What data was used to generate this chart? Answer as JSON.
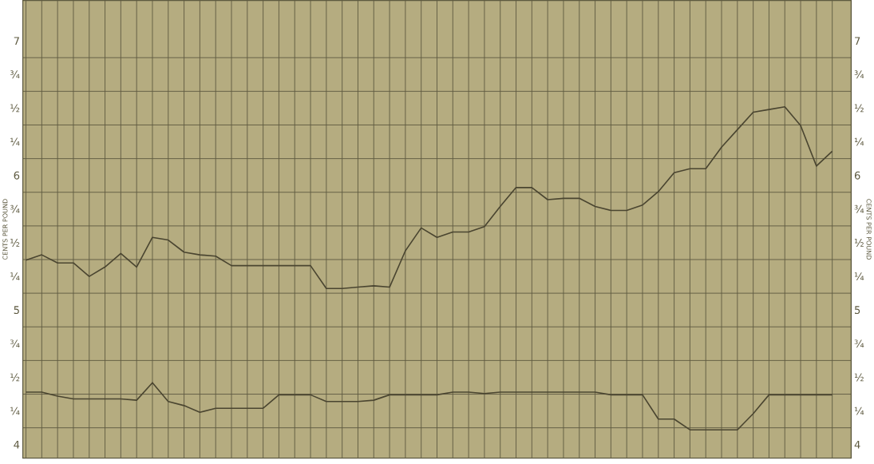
{
  "chart_data": {
    "type": "line",
    "ylabel": "CENTS PER POUND",
    "y2label": "CENTS PER POUND",
    "categories": [
      null,
      null,
      null,
      null,
      null,
      null,
      null,
      null,
      null,
      null,
      null,
      null,
      null,
      null,
      null,
      null,
      null,
      null,
      null,
      null,
      null,
      null,
      null,
      null,
      null,
      null,
      null,
      null,
      null,
      null,
      null,
      null,
      null,
      null,
      null,
      null,
      null,
      null,
      null,
      null,
      null,
      null,
      null,
      null,
      null,
      null,
      null,
      null,
      null,
      null,
      null,
      null
    ],
    "series": [
      {
        "color": "#4a4530",
        "values": [
          5.37,
          5.41,
          5.35,
          5.35,
          5.25,
          5.32,
          5.42,
          5.32,
          5.54,
          5.52,
          5.43,
          5.41,
          5.4,
          5.33,
          5.33,
          5.33,
          5.33,
          5.33,
          5.33,
          5.16,
          5.16,
          5.17,
          5.18,
          5.17,
          5.44,
          5.61,
          5.54,
          5.58,
          5.58,
          5.62,
          5.77,
          5.91,
          5.91,
          5.82,
          5.83,
          5.83,
          5.77,
          5.74,
          5.74,
          5.78,
          5.88,
          6.02,
          6.05,
          6.05,
          6.21,
          6.34,
          6.47,
          6.49,
          6.51,
          6.37,
          6.07,
          6.18
        ]
      },
      {
        "color": "#4a4530",
        "values": [
          4.39,
          4.39,
          4.36,
          4.34,
          4.34,
          4.34,
          4.34,
          4.33,
          4.46,
          4.32,
          4.29,
          4.24,
          4.27,
          4.27,
          4.27,
          4.27,
          4.37,
          4.37,
          4.37,
          4.32,
          4.32,
          4.32,
          4.33,
          4.37,
          4.37,
          4.37,
          4.37,
          4.39,
          4.39,
          4.38,
          4.39,
          4.39,
          4.39,
          4.39,
          4.39,
          4.39,
          4.39,
          4.37,
          4.37,
          4.37,
          4.19,
          4.19,
          4.11,
          4.11,
          4.11,
          4.11,
          4.23,
          4.37,
          4.37,
          4.37,
          4.37,
          4.37
        ]
      }
    ],
    "ylim": [
      3.9,
      7.3
    ],
    "yticks": [
      4,
      {
        "value": 4.25,
        "label": "¼"
      },
      {
        "value": 4.5,
        "label": "½"
      },
      {
        "value": 4.75,
        "label": "¾"
      },
      5,
      {
        "value": 5.25,
        "label": "¼"
      },
      {
        "value": 5.5,
        "label": "½"
      },
      {
        "value": 5.75,
        "label": "¾"
      },
      6,
      {
        "value": 6.25,
        "label": "¼"
      },
      {
        "value": 6.5,
        "label": "½"
      },
      {
        "value": 6.75,
        "label": "¾"
      },
      7
    ],
    "y2lim": [
      3.9,
      7.3
    ],
    "y2ticks": [
      4,
      {
        "value": 4.25,
        "label": "¼"
      },
      {
        "value": 4.5,
        "label": "½"
      },
      {
        "value": 4.75,
        "label": "¾"
      },
      5,
      {
        "value": 5.25,
        "label": "¼"
      },
      {
        "value": 5.5,
        "label": "½"
      },
      {
        "value": 5.75,
        "label": "¾"
      },
      6,
      {
        "value": 6.25,
        "label": "¼"
      },
      {
        "value": 6.5,
        "label": "½"
      },
      {
        "value": 6.75,
        "label": "¾"
      },
      7
    ],
    "grid": true,
    "tick_labels": "y",
    "marker": "none",
    "line_style": "solid"
  }
}
